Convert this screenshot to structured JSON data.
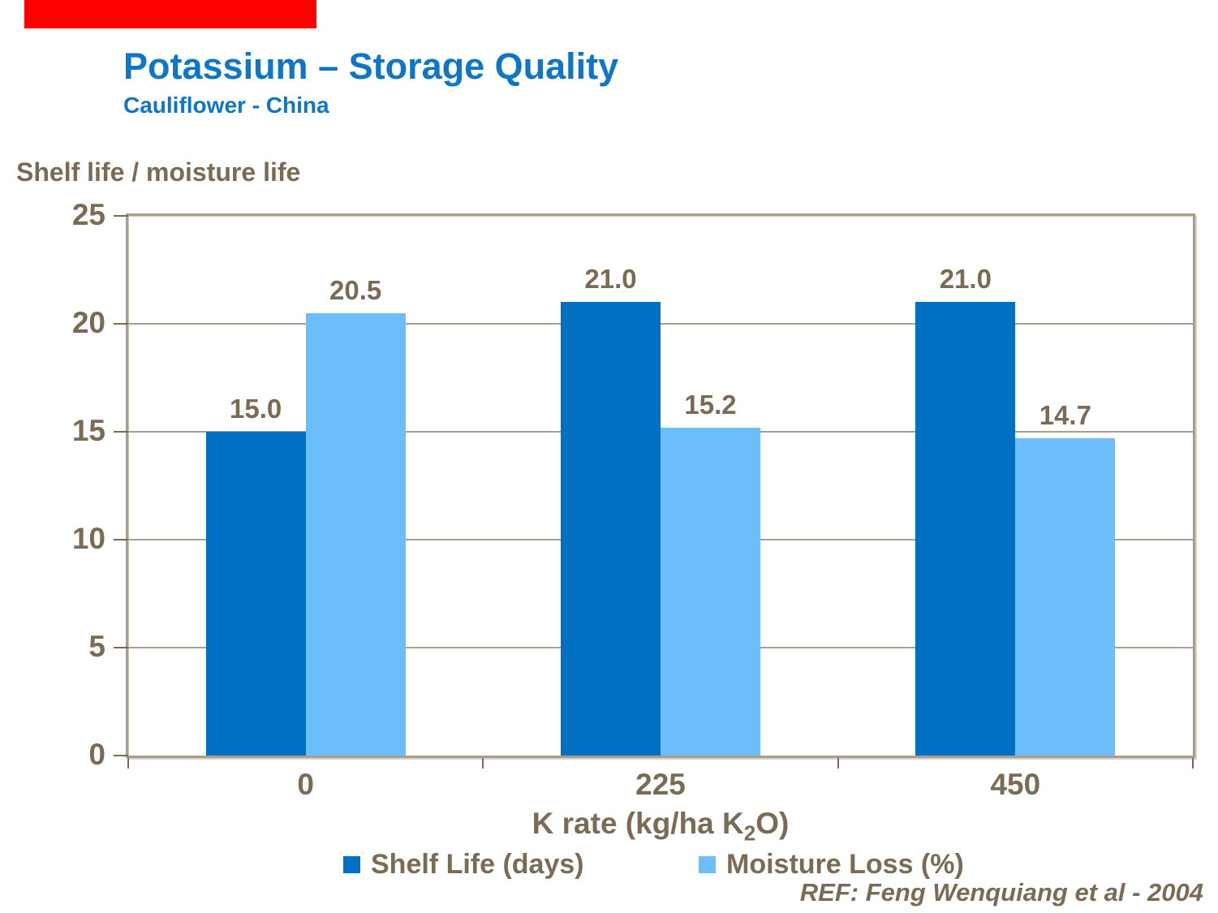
{
  "header": {
    "red_bar_color": "#FE0000",
    "title": "Potassium – Storage Quality",
    "subtitle": "Cauliflower - China"
  },
  "chart_data": {
    "type": "bar",
    "axis_title": "Shelf life / moisture life",
    "categories": [
      "0",
      "225",
      "450"
    ],
    "series": [
      {
        "name": "Shelf Life (days)",
        "color": "#0070C2",
        "values": [
          15.0,
          21.0,
          21.0
        ]
      },
      {
        "name": "Moisture Loss (%)",
        "color": "#6CBEFB",
        "values": [
          20.5,
          15.2,
          14.7
        ]
      }
    ],
    "value_label_decimals": 1,
    "xlabel": {
      "pre": "K rate (kg/ha K",
      "sub": "2",
      "post": "O)"
    },
    "ylim": [
      0,
      25
    ],
    "yticks": [
      0,
      5,
      10,
      15,
      20,
      25
    ],
    "grid": true,
    "legend_position": "bottom"
  },
  "footer": {
    "reference": "REF: Feng Wenquiang et al - 2004"
  },
  "colors": {
    "title_blue": "#0E76C4",
    "text_brown": "#7C6B54",
    "plot_border": "#A99D8E",
    "gridline": "#AB9F8F",
    "red_bar": "#FE0000"
  }
}
